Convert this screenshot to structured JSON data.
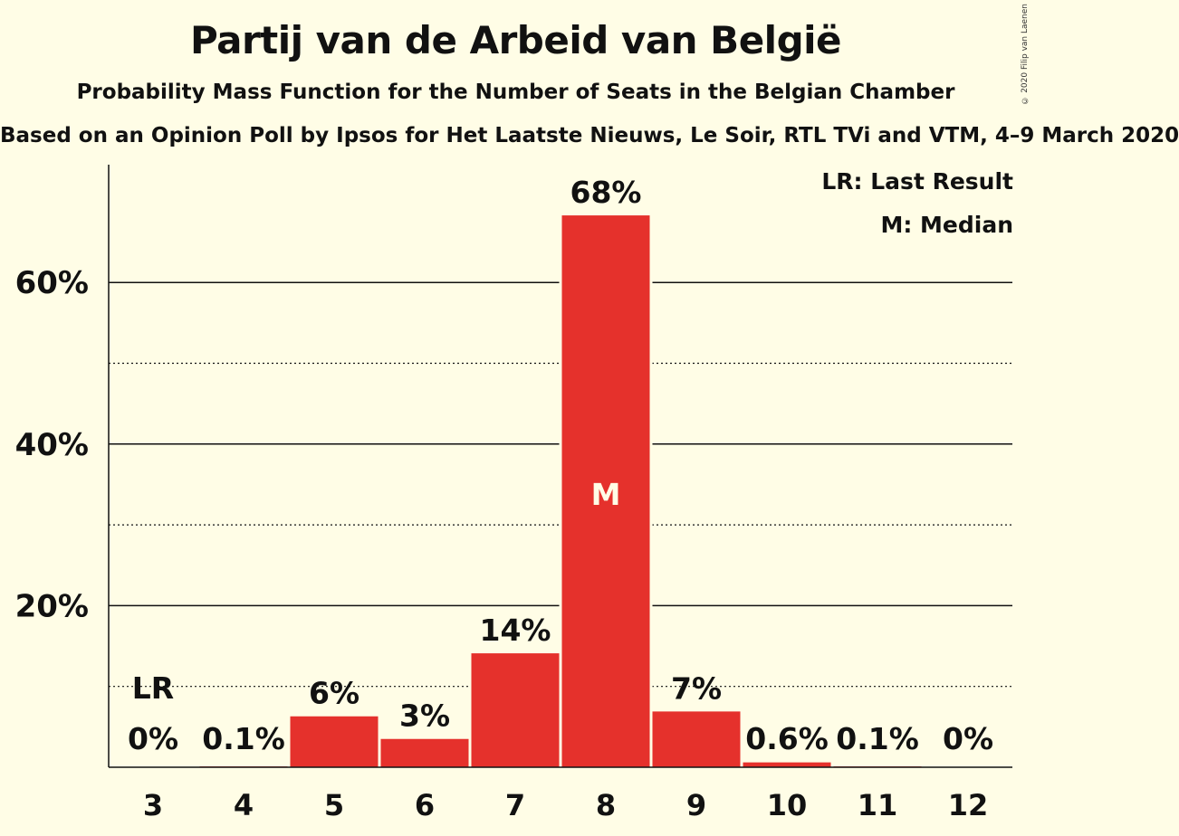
{
  "title": "Partij van de Arbeid van België",
  "subtitle": "Probability Mass Function for the Number of Seats in the Belgian Chamber",
  "source": "Based on an Opinion Poll by Ipsos for Het Laatste Nieuws, Le Soir, RTL TVi and VTM, 4–9 March 2020",
  "copyright": "© 2020 Filip van Laenen",
  "legend": {
    "last_result": "LR: Last Result",
    "median": "M: Median"
  },
  "colors": {
    "bar": "#e5312c",
    "background": "#fffde6"
  },
  "chart_data": {
    "type": "bar",
    "categories": [
      "3",
      "4",
      "5",
      "6",
      "7",
      "8",
      "9",
      "10",
      "11",
      "12"
    ],
    "values": [
      0,
      0.1,
      6.3,
      3.5,
      14.1,
      68.3,
      6.9,
      0.6,
      0.1,
      0
    ],
    "data_labels": [
      "0%",
      "0.1%",
      "6%",
      "3%",
      "14%",
      "68%",
      "7%",
      "0.6%",
      "0.1%",
      "0%"
    ],
    "y_ticks": [
      {
        "value": 20,
        "label": "20%"
      },
      {
        "value": 40,
        "label": "40%"
      },
      {
        "value": 60,
        "label": "60%"
      }
    ],
    "minor_gridlines": [
      10,
      30,
      50
    ],
    "ylim": [
      0,
      75
    ],
    "last_result_category": "3",
    "last_result_label": "LR",
    "median_category": "8",
    "median_label": "M",
    "grid": true,
    "legend_position": "top-right"
  }
}
